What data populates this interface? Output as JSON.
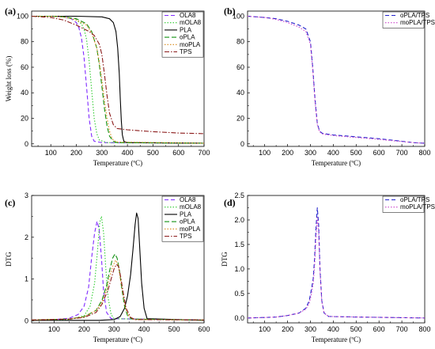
{
  "colors": {
    "purple": "#7f2aff",
    "green": "#33cc33",
    "black": "#000000",
    "darkgreen": "#109010",
    "orange": "#d98a1a",
    "brown": "#8b1a1a",
    "blue": "#2222cc",
    "magenta": "#cc44cc"
  },
  "chart_data": [
    {
      "id": "a",
      "panel_label": "(a)",
      "type": "line",
      "xlabel": "Temperature (ºC)",
      "ylabel": "Weight loss (%)",
      "xlim": [
        25,
        700
      ],
      "ylim": [
        -2,
        104
      ],
      "xticks": [
        100,
        200,
        300,
        400,
        500,
        600,
        700
      ],
      "yticks": [
        0,
        20,
        40,
        60,
        80,
        100
      ],
      "legend_position": "top-right",
      "series": [
        {
          "name": "OLA8",
          "color": "purple",
          "dash": "5,3",
          "x": [
            25,
            100,
            150,
            180,
            200,
            210,
            220,
            230,
            240,
            250,
            260,
            270,
            300,
            700
          ],
          "y": [
            100,
            100,
            99.5,
            98,
            95,
            91,
            83,
            68,
            45,
            20,
            6,
            2,
            1,
            0.5
          ]
        },
        {
          "name": "mOLA8",
          "color": "green",
          "dash": "1.5,2",
          "x": [
            25,
            100,
            150,
            200,
            220,
            230,
            240,
            250,
            260,
            270,
            280,
            290,
            320,
            700
          ],
          "y": [
            100,
            100,
            99.5,
            97,
            94,
            90,
            82,
            65,
            42,
            20,
            8,
            3,
            1,
            0.5
          ]
        },
        {
          "name": "PLA",
          "color": "black",
          "dash": "",
          "x": [
            25,
            200,
            300,
            330,
            345,
            355,
            362,
            368,
            372,
            376,
            380,
            386,
            400,
            700
          ],
          "y": [
            100,
            100,
            99.5,
            98,
            95,
            88,
            75,
            55,
            35,
            18,
            7,
            2,
            1,
            0.5
          ]
        },
        {
          "name": "oPLA",
          "color": "darkgreen",
          "dash": "6,3",
          "x": [
            25,
            100,
            150,
            200,
            240,
            260,
            280,
            290,
            300,
            310,
            320,
            330,
            345,
            360,
            700
          ],
          "y": [
            100,
            100,
            99.5,
            98,
            94,
            88,
            75,
            62,
            45,
            28,
            14,
            6,
            2,
            1,
            0.5
          ]
        },
        {
          "name": "moPLA",
          "color": "orange",
          "dash": "1.5,2",
          "x": [
            25,
            100,
            150,
            200,
            240,
            260,
            280,
            290,
            300,
            310,
            320,
            330,
            340,
            355,
            700
          ],
          "y": [
            100,
            100,
            99.5,
            97,
            93,
            87,
            75,
            64,
            50,
            34,
            20,
            10,
            4,
            1.5,
            0.5
          ]
        },
        {
          "name": "TPS",
          "color": "brown",
          "dash": "6,2,1.5,2",
          "x": [
            25,
            100,
            150,
            200,
            230,
            250,
            270,
            290,
            300,
            310,
            320,
            330,
            345,
            360,
            400,
            500,
            600,
            700
          ],
          "y": [
            100,
            99,
            97,
            93,
            90,
            88,
            85,
            78,
            70,
            55,
            38,
            24,
            15,
            12,
            11,
            9.5,
            8.5,
            8
          ]
        }
      ]
    },
    {
      "id": "b",
      "panel_label": "(b)",
      "type": "line",
      "xlabel": "Temperature (ºC)",
      "ylabel": "",
      "xlim": [
        25,
        800
      ],
      "ylim": [
        -2,
        104
      ],
      "xticks": [
        100,
        200,
        300,
        400,
        500,
        600,
        700,
        800
      ],
      "yticks": [
        0,
        20,
        40,
        60,
        80,
        100
      ],
      "legend_position": "top-right",
      "series": [
        {
          "name": "oPLA/TPS",
          "color": "blue",
          "dash": "5,3",
          "x": [
            25,
            100,
            150,
            200,
            250,
            280,
            300,
            310,
            320,
            330,
            340,
            350,
            360,
            400,
            500,
            600,
            700,
            750,
            800
          ],
          "y": [
            100,
            99,
            98,
            96,
            93,
            90,
            80,
            60,
            35,
            16,
            10,
            8.5,
            8,
            7,
            5.5,
            4,
            2,
            1,
            0.5
          ]
        },
        {
          "name": "moPLA/TPS",
          "color": "magenta",
          "dash": "1.5,2",
          "x": [
            25,
            100,
            150,
            200,
            250,
            280,
            300,
            310,
            320,
            330,
            340,
            350,
            360,
            400,
            500,
            600,
            700,
            750,
            800
          ],
          "y": [
            100,
            99,
            97.5,
            95,
            91.5,
            88,
            78,
            58,
            33,
            15,
            9.5,
            8,
            7.5,
            6.5,
            5,
            3.5,
            1.8,
            1,
            0.5
          ]
        }
      ]
    },
    {
      "id": "c",
      "panel_label": "(c)",
      "type": "line",
      "xlabel": "Temperature (ºC)",
      "ylabel": "DTG",
      "xlim": [
        25,
        600
      ],
      "ylim": [
        -0.05,
        3
      ],
      "xticks": [
        100,
        200,
        300,
        400,
        500,
        600
      ],
      "yticks": [
        0,
        1,
        2,
        3
      ],
      "legend_position": "top-right",
      "series": [
        {
          "name": "OLA8",
          "color": "purple",
          "dash": "5,3",
          "x": [
            25,
            100,
            150,
            180,
            200,
            215,
            225,
            235,
            243,
            250,
            258,
            265,
            275,
            290,
            600
          ],
          "y": [
            0.02,
            0.03,
            0.06,
            0.15,
            0.35,
            0.8,
            1.5,
            2.1,
            2.38,
            2.2,
            1.5,
            0.7,
            0.2,
            0.05,
            0.02
          ]
        },
        {
          "name": "mOLA8",
          "color": "green",
          "dash": "1.5,2",
          "x": [
            25,
            150,
            200,
            220,
            235,
            245,
            252,
            258,
            265,
            272,
            280,
            290,
            300,
            600
          ],
          "y": [
            0.01,
            0.03,
            0.12,
            0.35,
            0.9,
            1.7,
            2.35,
            2.5,
            2.1,
            1.3,
            0.55,
            0.15,
            0.05,
            0.01
          ]
        },
        {
          "name": "PLA",
          "color": "black",
          "dash": "",
          "x": [
            25,
            250,
            300,
            320,
            335,
            345,
            355,
            363,
            370,
            375,
            380,
            385,
            392,
            400,
            410,
            600
          ],
          "y": [
            0.01,
            0.01,
            0.03,
            0.1,
            0.3,
            0.6,
            1.1,
            1.7,
            2.3,
            2.58,
            2.45,
            1.8,
            0.9,
            0.3,
            0.05,
            0.01
          ]
        },
        {
          "name": "oPLA",
          "color": "darkgreen",
          "dash": "6,3",
          "x": [
            25,
            150,
            200,
            240,
            260,
            275,
            285,
            295,
            303,
            310,
            318,
            325,
            335,
            345,
            360,
            600
          ],
          "y": [
            0.02,
            0.04,
            0.1,
            0.25,
            0.5,
            0.85,
            1.2,
            1.5,
            1.6,
            1.5,
            1.2,
            0.8,
            0.35,
            0.12,
            0.04,
            0.02
          ]
        },
        {
          "name": "moPLA",
          "color": "orange",
          "dash": "1.5,2",
          "x": [
            25,
            150,
            200,
            240,
            260,
            275,
            285,
            295,
            305,
            313,
            320,
            328,
            338,
            350,
            365,
            600
          ],
          "y": [
            0.02,
            0.04,
            0.1,
            0.25,
            0.45,
            0.75,
            1.05,
            1.3,
            1.45,
            1.35,
            1.05,
            0.7,
            0.3,
            0.1,
            0.03,
            0.02
          ]
        },
        {
          "name": "TPS",
          "color": "brown",
          "dash": "6,2,1.5,2",
          "x": [
            25,
            150,
            200,
            240,
            260,
            280,
            290,
            300,
            308,
            315,
            322,
            330,
            340,
            355,
            370,
            600
          ],
          "y": [
            0.02,
            0.04,
            0.08,
            0.2,
            0.4,
            0.75,
            1.0,
            1.25,
            1.35,
            1.3,
            1.05,
            0.7,
            0.3,
            0.08,
            0.03,
            0.02
          ]
        }
      ]
    },
    {
      "id": "d",
      "panel_label": "(d)",
      "type": "line",
      "xlabel": "Temperature (ºC)",
      "ylabel": "DTG",
      "xlim": [
        25,
        800
      ],
      "ylim": [
        -0.1,
        2.5
      ],
      "xticks": [
        100,
        200,
        300,
        400,
        500,
        600,
        700,
        800
      ],
      "yticks": [
        0.0,
        0.5,
        1.0,
        1.5,
        2.0,
        2.5
      ],
      "legend_position": "top-right",
      "series": [
        {
          "name": "oPLA/TPS",
          "color": "blue",
          "dash": "5,3",
          "x": [
            25,
            100,
            150,
            200,
            250,
            280,
            295,
            305,
            312,
            318,
            324,
            330,
            336,
            342,
            350,
            360,
            380,
            500,
            800
          ],
          "y": [
            0.0,
            0.01,
            0.02,
            0.05,
            0.1,
            0.2,
            0.35,
            0.6,
            0.8,
            1.2,
            1.8,
            2.25,
            1.9,
            1.0,
            0.35,
            0.1,
            0.03,
            0.02,
            0.0
          ]
        },
        {
          "name": "moPLA/TPS",
          "color": "magenta",
          "dash": "1.5,2",
          "x": [
            25,
            100,
            150,
            200,
            250,
            280,
            295,
            305,
            312,
            318,
            324,
            330,
            336,
            342,
            350,
            360,
            380,
            500,
            800
          ],
          "y": [
            0.0,
            0.01,
            0.02,
            0.05,
            0.1,
            0.18,
            0.3,
            0.5,
            0.7,
            1.05,
            1.6,
            2.05,
            1.75,
            0.95,
            0.33,
            0.1,
            0.03,
            0.02,
            0.0
          ]
        }
      ]
    }
  ]
}
